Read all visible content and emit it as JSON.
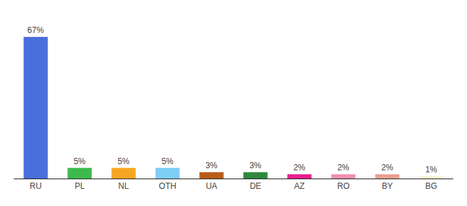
{
  "chart_data": {
    "type": "bar",
    "categories": [
      "RU",
      "PL",
      "NL",
      "OTH",
      "UA",
      "DE",
      "AZ",
      "RO",
      "BY",
      "BG"
    ],
    "values": [
      67,
      5,
      5,
      5,
      3,
      3,
      2,
      2,
      2,
      1
    ],
    "value_labels": [
      "67%",
      "5%",
      "5%",
      "5%",
      "3%",
      "3%",
      "2%",
      "2%",
      "2%",
      "1%"
    ],
    "colors": [
      "#4a6edb",
      "#3dba4e",
      "#f5a623",
      "#7ecef5",
      "#b85c1a",
      "#2d8a3e",
      "#e91e8c",
      "#f48fb1",
      "#e8a090",
      "#f5f0c8"
    ],
    "ylim": [
      0,
      78
    ],
    "grid": false,
    "data_labels": true,
    "tick_labels": "x"
  }
}
